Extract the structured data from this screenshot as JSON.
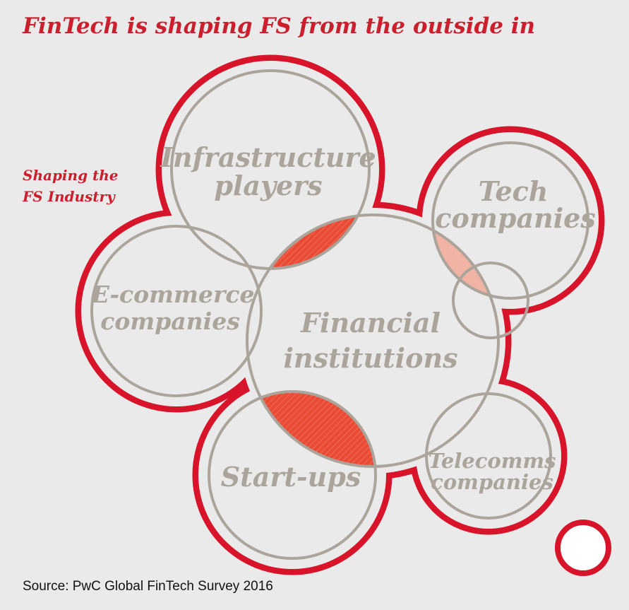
{
  "header": {
    "title": "FinTech is shaping FS from the outside in"
  },
  "annotation": {
    "lines": [
      "Shaping the",
      "FS Industry"
    ]
  },
  "nodes": [
    {
      "label_lines": [
        "Infrastructure",
        "players"
      ]
    },
    {
      "label_lines": [
        "Tech",
        "companies"
      ]
    },
    {
      "label_lines": [
        "E-commerce",
        "companies"
      ]
    },
    {
      "label_lines": [
        "Financial",
        "institutions"
      ]
    },
    {
      "label_lines": [
        "Start-ups"
      ]
    },
    {
      "label_lines": [
        "Telecomms",
        "companies"
      ]
    }
  ],
  "source": "Source: PwC Global FinTech Survey 2016"
}
